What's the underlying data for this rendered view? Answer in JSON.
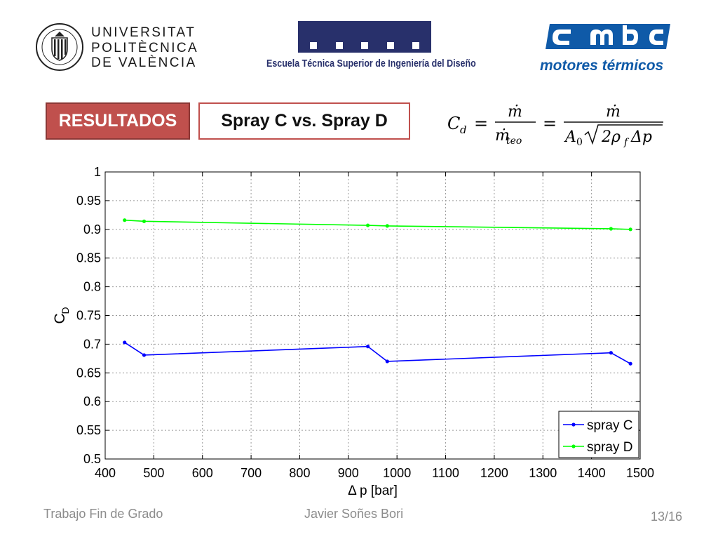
{
  "header": {
    "upv_lines": [
      "UNIVERSITAT",
      "POLITÈCNICA",
      "DE VALÈNCIA"
    ],
    "etsid_name": "Escuela Técnica Superior de Ingeniería del Diseño",
    "cmt_name": "motores térmicos"
  },
  "title": {
    "section": "RESULTADOS",
    "subtitle": "Spray C vs. Spray D"
  },
  "formula": {
    "lhs_main": "C",
    "lhs_sub": "d",
    "num1": "ṁ",
    "den1_main": "ṁ",
    "den1_sub": "teo",
    "num2": "ṁ",
    "den2_a": "A",
    "den2_a_sub": "0",
    "den2_rest": "2ρ",
    "den2_rho_sub": "f",
    "den2_dp": "Δp"
  },
  "chart_data": {
    "type": "line",
    "xlabel": "Δ p [bar]",
    "ylabel": "C",
    "ylabel_sub": "D",
    "xlim": [
      400,
      1500
    ],
    "ylim": [
      0.5,
      1
    ],
    "xticks": [
      400,
      500,
      600,
      700,
      800,
      900,
      1000,
      1100,
      1200,
      1300,
      1400,
      1500
    ],
    "yticks": [
      0.5,
      0.55,
      0.6,
      0.65,
      0.7,
      0.75,
      0.8,
      0.85,
      0.9,
      0.95,
      1
    ],
    "xtick_labels": [
      "400",
      "500",
      "600",
      "700",
      "800",
      "900",
      "1000",
      "1100",
      "1200",
      "1300",
      "1400",
      "1500"
    ],
    "ytick_labels": [
      "0.5",
      "0.55",
      "0.6",
      "0.65",
      "0.7",
      "0.75",
      "0.8",
      "0.85",
      "0.9",
      "0.95",
      "1"
    ],
    "grid": true,
    "legend_position": "bottom-right",
    "series": [
      {
        "name": "spray C",
        "color": "#0000ff",
        "x": [
          440,
          480,
          940,
          980,
          1440,
          1480
        ],
        "y": [
          0.703,
          0.681,
          0.696,
          0.67,
          0.685,
          0.666
        ]
      },
      {
        "name": "spray D",
        "color": "#00ff00",
        "x": [
          440,
          480,
          940,
          980,
          1440,
          1480
        ],
        "y": [
          0.916,
          0.914,
          0.907,
          0.906,
          0.901,
          0.9
        ]
      }
    ]
  },
  "footer": {
    "left": "Trabajo Fin de Grado",
    "center": "Javier Soñes Bori",
    "page": "13/16"
  },
  "colors": {
    "badge_red": "#c0504d",
    "etsid_navy": "#28306b",
    "cmt_blue": "#0f5aa8"
  }
}
